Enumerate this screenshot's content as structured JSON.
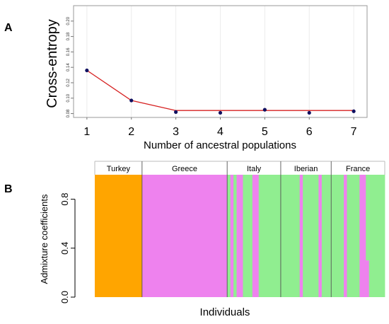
{
  "chart_data": [
    {
      "panel_label": "A",
      "type": "line",
      "ylabel": "Cross-entropy",
      "xlabel": "Number of ancestral populations",
      "x": [
        1,
        2,
        3,
        4,
        5,
        6,
        7
      ],
      "x_ticks": [
        "1",
        "2",
        "3",
        "4",
        "5",
        "6",
        "7"
      ],
      "ylim": [
        0.075,
        0.22
      ],
      "y_ticks": [
        "0.08",
        "0.10",
        "0.12",
        "0.14",
        "0.16",
        "0.18",
        "0.20"
      ],
      "y_tick_values": [
        0.08,
        0.1,
        0.12,
        0.14,
        0.16,
        0.18,
        0.2
      ],
      "grid": true,
      "series": [
        {
          "values": [
            0.136,
            0.097,
            0.084,
            0.084,
            0.084,
            0.084,
            0.084
          ],
          "color": "#d62020"
        }
      ],
      "points": [
        {
          "x": 1,
          "y": 0.136
        },
        {
          "x": 2,
          "y": 0.097
        },
        {
          "x": 3,
          "y": 0.082
        },
        {
          "x": 4,
          "y": 0.081
        },
        {
          "x": 5,
          "y": 0.085
        },
        {
          "x": 6,
          "y": 0.081
        },
        {
          "x": 7,
          "y": 0.083
        }
      ],
      "point_color": "#101060"
    },
    {
      "panel_label": "B",
      "type": "bar",
      "stacked": true,
      "ylabel": "Admixture coefficients",
      "xlabel": "Individuals",
      "ylim": [
        0,
        1
      ],
      "y_ticks": [
        "0.0",
        "0.4",
        "0.8"
      ],
      "y_tick_values": [
        0.0,
        0.4,
        0.8
      ],
      "colors": {
        "orange": "#ffa500",
        "violet": "#ee82ee",
        "green": "#90ee90"
      },
      "groups": [
        {
          "name": "Turkey",
          "segments": [
            {
              "n": 15,
              "orange": 1,
              "violet": 0,
              "green": 0
            }
          ]
        },
        {
          "name": "Greece",
          "segments": [
            {
              "n": 27,
              "orange": 0,
              "violet": 1,
              "green": 0
            }
          ]
        },
        {
          "name": "Italy",
          "segments": [
            {
              "n": 1,
              "orange": 0,
              "violet": 0,
              "green": 1
            },
            {
              "n": 1,
              "orange": 0,
              "violet": 1,
              "green": 0
            },
            {
              "n": 1,
              "orange": 0,
              "violet": 0,
              "green": 1
            },
            {
              "n": 2,
              "orange": 0,
              "violet": 1,
              "green": 0
            },
            {
              "n": 3,
              "orange": 0,
              "violet": 0,
              "green": 1
            },
            {
              "n": 2,
              "orange": 0,
              "violet": 1,
              "green": 0
            },
            {
              "n": 7,
              "orange": 0,
              "violet": 0,
              "green": 1
            }
          ]
        },
        {
          "name": "Iberian",
          "segments": [
            {
              "n": 6,
              "orange": 0,
              "violet": 0,
              "green": 1
            },
            {
              "n": 1,
              "orange": 0,
              "violet": 1,
              "green": 0
            },
            {
              "n": 5,
              "orange": 0,
              "violet": 0,
              "green": 1
            },
            {
              "n": 1,
              "orange": 0,
              "violet": 1,
              "green": 0
            },
            {
              "n": 3,
              "orange": 0,
              "violet": 0,
              "green": 1
            }
          ]
        },
        {
          "name": "France",
          "segments": [
            {
              "n": 4,
              "orange": 0,
              "violet": 0,
              "green": 1
            },
            {
              "n": 1,
              "orange": 0,
              "violet": 1,
              "green": 0
            },
            {
              "n": 4,
              "orange": 0,
              "violet": 0,
              "green": 1
            },
            {
              "n": 2,
              "orange": 0,
              "violet": 1,
              "green": 0
            },
            {
              "n": 1,
              "orange": 0,
              "violet": 0.3,
              "green": 0.7
            },
            {
              "n": 5,
              "orange": 0,
              "violet": 0,
              "green": 1
            }
          ]
        }
      ]
    }
  ]
}
